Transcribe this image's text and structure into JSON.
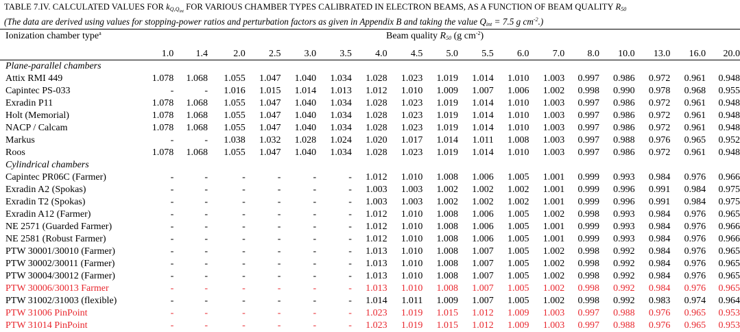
{
  "title": {
    "prefix": "TABLE 7.IV. CALCULATED VALUES FOR ",
    "symbol": "k",
    "symbol_sub": "Q,Q",
    "symbol_subsub": "int",
    "middle": " FOR VARIOUS CHAMBER TYPES CALIBRATED IN ELECTRON BEAMS, AS A FUNCTION OF BEAM QUALITY ",
    "r50": "R",
    "r50_sub": "50"
  },
  "subtitle": {
    "text": "(The data are derived using values for stopping-power ratios and perturbation factors as given in Appendix B and taking the value ",
    "q": "Q",
    "q_sub": "int",
    "tail": " = 7.5 g cm",
    "tail_sup": "-2",
    "end": ".)"
  },
  "header": {
    "chamber_type": "Ionization chamber type",
    "chamber_type_note": "a",
    "beam_quality_label": "Beam quality ",
    "beam_quality_sym": "R",
    "beam_quality_sub": "50",
    "beam_quality_unit": " (g cm",
    "beam_quality_unit_sup": "-2",
    "beam_quality_unit_end": ")",
    "columns": [
      "1.0",
      "1.4",
      "2.0",
      "2.5",
      "3.0",
      "3.5",
      "4.0",
      "4.5",
      "5.0",
      "5.5",
      "6.0",
      "7.0",
      "8.0",
      "10.0",
      "13.0",
      "16.0",
      "20.0"
    ]
  },
  "colors": {
    "highlight": "#e8262d",
    "text": "#000000"
  },
  "rows": [
    {
      "type": "section",
      "name": "Plane-parallel chambers"
    },
    {
      "name": "Attix RMI 449",
      "values": [
        "1.078",
        "1.068",
        "1.055",
        "1.047",
        "1.040",
        "1.034",
        "1.028",
        "1.023",
        "1.019",
        "1.014",
        "1.010",
        "1.003",
        "0.997",
        "0.986",
        "0.972",
        "0.961",
        "0.948"
      ]
    },
    {
      "name": "Capintec PS-033",
      "values": [
        "-",
        "-",
        "1.016",
        "1.015",
        "1.014",
        "1.013",
        "1.012",
        "1.010",
        "1.009",
        "1.007",
        "1.006",
        "1.002",
        "0.998",
        "0.990",
        "0.978",
        "0.968",
        "0.955"
      ]
    },
    {
      "name": "Exradin P11",
      "values": [
        "1.078",
        "1.068",
        "1.055",
        "1.047",
        "1.040",
        "1.034",
        "1.028",
        "1.023",
        "1.019",
        "1.014",
        "1.010",
        "1.003",
        "0.997",
        "0.986",
        "0.972",
        "0.961",
        "0.948"
      ]
    },
    {
      "name": "Holt (Memorial)",
      "values": [
        "1.078",
        "1.068",
        "1.055",
        "1.047",
        "1.040",
        "1.034",
        "1.028",
        "1.023",
        "1.019",
        "1.014",
        "1.010",
        "1.003",
        "0.997",
        "0.986",
        "0.972",
        "0.961",
        "0.948"
      ]
    },
    {
      "name": "NACP / Calcam",
      "values": [
        "1.078",
        "1.068",
        "1.055",
        "1.047",
        "1.040",
        "1.034",
        "1.028",
        "1.023",
        "1.019",
        "1.014",
        "1.010",
        "1.003",
        "0.997",
        "0.986",
        "0.972",
        "0.961",
        "0.948"
      ]
    },
    {
      "name": "Markus",
      "values": [
        "-",
        "-",
        "1.038",
        "1.032",
        "1.028",
        "1.024",
        "1.020",
        "1.017",
        "1.014",
        "1.011",
        "1.008",
        "1.003",
        "0.997",
        "0.988",
        "0.976",
        "0.965",
        "0.952"
      ]
    },
    {
      "name": "Roos",
      "values": [
        "1.078",
        "1.068",
        "1.055",
        "1.047",
        "1.040",
        "1.034",
        "1.028",
        "1.023",
        "1.019",
        "1.014",
        "1.010",
        "1.003",
        "0.997",
        "0.986",
        "0.972",
        "0.961",
        "0.948"
      ]
    },
    {
      "type": "section",
      "name": "Cylindrical chambers"
    },
    {
      "name": "Capintec PR06C (Farmer)",
      "values": [
        "-",
        "-",
        "-",
        "-",
        "-",
        "-",
        "1.012",
        "1.010",
        "1.008",
        "1.006",
        "1.005",
        "1.001",
        "0.999",
        "0.993",
        "0.984",
        "0.976",
        "0.966"
      ]
    },
    {
      "name": "Exradin A2 (Spokas)",
      "values": [
        "-",
        "-",
        "-",
        "-",
        "-",
        "-",
        "1.003",
        "1.003",
        "1.002",
        "1.002",
        "1.002",
        "1.001",
        "0.999",
        "0.996",
        "0.991",
        "0.984",
        "0.975"
      ]
    },
    {
      "name": "Exradin T2 (Spokas)",
      "values": [
        "-",
        "-",
        "-",
        "-",
        "-",
        "-",
        "1.003",
        "1.003",
        "1.002",
        "1.002",
        "1.002",
        "1.001",
        "0.999",
        "0.996",
        "0.991",
        "0.984",
        "0.975"
      ]
    },
    {
      "name": "Exradin A12 (Farmer)",
      "values": [
        "-",
        "-",
        "-",
        "-",
        "-",
        "-",
        "1.012",
        "1.010",
        "1.008",
        "1.006",
        "1.005",
        "1.002",
        "0.998",
        "0.993",
        "0.984",
        "0.976",
        "0.965"
      ]
    },
    {
      "name": "NE 2571 (Guarded Farmer)",
      "values": [
        "-",
        "-",
        "-",
        "-",
        "-",
        "-",
        "1.012",
        "1.010",
        "1.008",
        "1.006",
        "1.005",
        "1.001",
        "0.999",
        "0.993",
        "0.984",
        "0.976",
        "0.966"
      ]
    },
    {
      "name": "NE 2581 (Robust Farmer)",
      "values": [
        "-",
        "-",
        "-",
        "-",
        "-",
        "-",
        "1.012",
        "1.010",
        "1.008",
        "1.006",
        "1.005",
        "1.001",
        "0.999",
        "0.993",
        "0.984",
        "0.976",
        "0.966"
      ]
    },
    {
      "name": "PTW 30001/30010 (Farmer)",
      "values": [
        "-",
        "-",
        "-",
        "-",
        "-",
        "-",
        "1.013",
        "1.010",
        "1.008",
        "1.007",
        "1.005",
        "1.002",
        "0.998",
        "0.992",
        "0.984",
        "0.976",
        "0.965"
      ]
    },
    {
      "name": "PTW 30002/30011 (Farmer)",
      "values": [
        "-",
        "-",
        "-",
        "-",
        "-",
        "-",
        "1.013",
        "1.010",
        "1.008",
        "1.007",
        "1.005",
        "1.002",
        "0.998",
        "0.992",
        "0.984",
        "0.976",
        "0.965"
      ]
    },
    {
      "name": "PTW 30004/30012 (Farmer)",
      "values": [
        "-",
        "-",
        "-",
        "-",
        "-",
        "-",
        "1.013",
        "1.010",
        "1.008",
        "1.007",
        "1.005",
        "1.002",
        "0.998",
        "0.992",
        "0.984",
        "0.976",
        "0.965"
      ]
    },
    {
      "name": "PTW 30006/30013 Farmer",
      "highlight": true,
      "values": [
        "-",
        "-",
        "-",
        "-",
        "-",
        "-",
        "1.013",
        "1.010",
        "1.008",
        "1.007",
        "1.005",
        "1.002",
        "0.998",
        "0.992",
        "0.984",
        "0.976",
        "0.965"
      ]
    },
    {
      "name": "PTW 31002/31003 (flexible)",
      "values": [
        "-",
        "-",
        "-",
        "-",
        "-",
        "-",
        "1.014",
        "1.011",
        "1.009",
        "1.007",
        "1.005",
        "1.002",
        "0.998",
        "0.992",
        "0.983",
        "0.974",
        "0.964"
      ]
    },
    {
      "name": "PTW 31006 PinPoint",
      "highlight": true,
      "values": [
        "-",
        "-",
        "-",
        "-",
        "-",
        "-",
        "1.023",
        "1.019",
        "1.015",
        "1.012",
        "1.009",
        "1.003",
        "0.997",
        "0.988",
        "0.976",
        "0.965",
        "0.953"
      ]
    },
    {
      "name": "PTW 31014 PinPoint",
      "highlight": true,
      "values": [
        "-",
        "-",
        "-",
        "-",
        "-",
        "-",
        "1.023",
        "1.019",
        "1.015",
        "1.012",
        "1.009",
        "1.003",
        "0.997",
        "0.988",
        "0.976",
        "0.965",
        "0.953"
      ]
    }
  ]
}
